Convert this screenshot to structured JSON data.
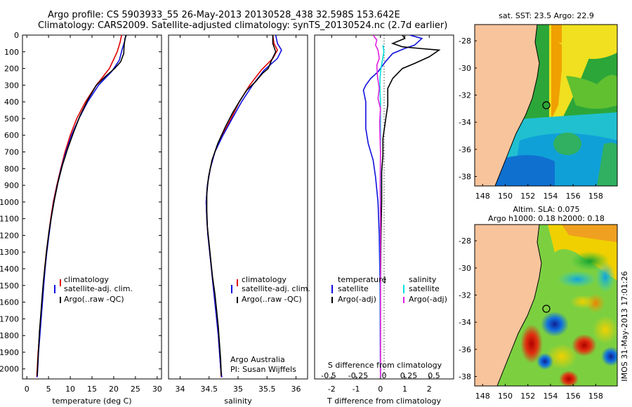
{
  "header": {
    "line1": "Argo profile: CS 5903933_55 26-May-2013 20130528_438 32.598S 153.642E",
    "line2": "Climatology: CARS2009. Satellite-adjusted climatology: synTS_20130524.nc (2.7d earlier)"
  },
  "colors": {
    "climatology": "#e00000",
    "satellite": "#1010e0",
    "argo": "#000000",
    "sal_satellite": "#00e0e0",
    "sal_argo": "#e020e0",
    "land": "#f8c49c"
  },
  "chart_data": [
    {
      "id": "temperature",
      "type": "line",
      "xlabel": "temperature (deg C)",
      "xlim": [
        -1,
        31
      ],
      "ylim": [
        0,
        2060
      ],
      "y_reversed": true,
      "xticks": [
        0,
        5,
        10,
        15,
        20,
        25,
        30
      ],
      "yticks": [
        0,
        100,
        200,
        300,
        400,
        500,
        600,
        700,
        800,
        900,
        1000,
        1100,
        1200,
        1300,
        1400,
        1500,
        1600,
        1700,
        1800,
        1900,
        2000
      ],
      "legend": [
        "climatology",
        "satellite-adj. clim.",
        "Argo(..raw -QC)"
      ],
      "series": [
        {
          "name": "climatology",
          "color": "#e00000",
          "points": [
            [
              21.8,
              0
            ],
            [
              21.5,
              40
            ],
            [
              20.8,
              100
            ],
            [
              19,
              200
            ],
            [
              16,
              300
            ],
            [
              13.5,
              400
            ],
            [
              11.5,
              500
            ],
            [
              10,
              600
            ],
            [
              8.8,
              700
            ],
            [
              7.8,
              800
            ],
            [
              6.9,
              900
            ],
            [
              6.1,
              1000
            ],
            [
              5.5,
              1100
            ],
            [
              5,
              1200
            ],
            [
              4.5,
              1300
            ],
            [
              4.1,
              1400
            ],
            [
              3.8,
              1500
            ],
            [
              3.5,
              1600
            ],
            [
              3.2,
              1700
            ],
            [
              2.9,
              1800
            ],
            [
              2.6,
              1900
            ],
            [
              2.4,
              2000
            ],
            [
              2.3,
              2050
            ]
          ]
        },
        {
          "name": "satellite-adj. clim.",
          "color": "#1010e0",
          "points": [
            [
              22.8,
              0
            ],
            [
              22.5,
              40
            ],
            [
              22,
              80
            ],
            [
              21.3,
              150
            ],
            [
              19.5,
              220
            ],
            [
              16.5,
              300
            ],
            [
              14,
              400
            ],
            [
              12,
              500
            ],
            [
              10.3,
              600
            ],
            [
              9,
              700
            ],
            [
              7.9,
              800
            ],
            [
              7,
              900
            ],
            [
              6.2,
              1000
            ],
            [
              5.6,
              1100
            ],
            [
              5.1,
              1200
            ],
            [
              4.6,
              1300
            ],
            [
              4.2,
              1400
            ],
            [
              3.9,
              1500
            ],
            [
              3.6,
              1600
            ],
            [
              3.3,
              1700
            ],
            [
              3,
              1800
            ],
            [
              2.7,
              1900
            ],
            [
              2.5,
              2000
            ],
            [
              2.4,
              2050
            ]
          ]
        },
        {
          "name": "Argo(..raw -QC)",
          "color": "#000000",
          "points": [
            [
              22.9,
              0
            ],
            [
              22.6,
              20
            ],
            [
              22.4,
              60
            ],
            [
              22.3,
              110
            ],
            [
              21.6,
              160
            ],
            [
              20.2,
              200
            ],
            [
              18,
              250
            ],
            [
              16,
              300
            ],
            [
              14.2,
              380
            ],
            [
              12.3,
              480
            ],
            [
              10.8,
              580
            ],
            [
              9.4,
              680
            ],
            [
              8.2,
              780
            ],
            [
              7.2,
              880
            ],
            [
              6.4,
              980
            ],
            [
              5.7,
              1080
            ],
            [
              5.1,
              1180
            ],
            [
              4.6,
              1280
            ],
            [
              4.2,
              1380
            ],
            [
              3.8,
              1480
            ],
            [
              3.5,
              1580
            ],
            [
              3.2,
              1680
            ],
            [
              2.9,
              1780
            ],
            [
              2.7,
              1880
            ],
            [
              2.5,
              1980
            ],
            [
              2.4,
              2040
            ]
          ]
        }
      ]
    },
    {
      "id": "salinity",
      "type": "line",
      "xlabel": "salinity",
      "xlim": [
        33.8,
        36.2
      ],
      "ylim": [
        0,
        2060
      ],
      "y_reversed": true,
      "xticks": [
        34,
        34.5,
        35,
        35.5,
        36
      ],
      "legend": [
        "climatology",
        "satellite-adj. clim.",
        "Argo(..raw -QC)"
      ],
      "annotation": [
        "Argo Australia",
        "PI: Susan Wijffels"
      ],
      "series": [
        {
          "name": "climatology",
          "color": "#e00000",
          "points": [
            [
              35.6,
              0
            ],
            [
              35.62,
              50
            ],
            [
              35.68,
              90
            ],
            [
              35.6,
              140
            ],
            [
              35.4,
              210
            ],
            [
              35.2,
              300
            ],
            [
              35.02,
              400
            ],
            [
              34.88,
              500
            ],
            [
              34.73,
              600
            ],
            [
              34.6,
              700
            ],
            [
              34.52,
              800
            ],
            [
              34.47,
              900
            ],
            [
              34.45,
              1000
            ],
            [
              34.46,
              1100
            ],
            [
              34.48,
              1200
            ],
            [
              34.51,
              1300
            ],
            [
              34.54,
              1400
            ],
            [
              34.57,
              1500
            ],
            [
              34.6,
              1600
            ],
            [
              34.63,
              1700
            ],
            [
              34.66,
              1800
            ],
            [
              34.68,
              1900
            ],
            [
              34.7,
              2000
            ],
            [
              34.71,
              2050
            ]
          ]
        },
        {
          "name": "satellite-adj. clim.",
          "color": "#1010e0",
          "points": [
            [
              35.65,
              0
            ],
            [
              35.68,
              50
            ],
            [
              35.75,
              90
            ],
            [
              35.68,
              140
            ],
            [
              35.45,
              210
            ],
            [
              35.25,
              300
            ],
            [
              35.06,
              400
            ],
            [
              34.9,
              500
            ],
            [
              34.74,
              600
            ],
            [
              34.6,
              700
            ],
            [
              34.52,
              800
            ],
            [
              34.47,
              900
            ],
            [
              34.45,
              1000
            ],
            [
              34.46,
              1100
            ],
            [
              34.48,
              1200
            ],
            [
              34.51,
              1300
            ],
            [
              34.54,
              1400
            ],
            [
              34.57,
              1500
            ],
            [
              34.6,
              1600
            ],
            [
              34.63,
              1700
            ],
            [
              34.66,
              1800
            ],
            [
              34.68,
              1900
            ],
            [
              34.7,
              2000
            ],
            [
              34.72,
              2050
            ]
          ]
        },
        {
          "name": "Argo(..raw -QC)",
          "color": "#000000",
          "points": [
            [
              35.6,
              0
            ],
            [
              35.6,
              50
            ],
            [
              35.65,
              100
            ],
            [
              35.58,
              150
            ],
            [
              35.52,
              200
            ],
            [
              35.42,
              230
            ],
            [
              35.3,
              280
            ],
            [
              35.15,
              330
            ],
            [
              35.02,
              400
            ],
            [
              34.9,
              470
            ],
            [
              34.78,
              550
            ],
            [
              34.65,
              650
            ],
            [
              34.55,
              750
            ],
            [
              34.49,
              850
            ],
            [
              34.46,
              950
            ],
            [
              34.46,
              1050
            ],
            [
              34.47,
              1150
            ],
            [
              34.5,
              1250
            ],
            [
              34.53,
              1350
            ],
            [
              34.56,
              1450
            ],
            [
              34.6,
              1550
            ],
            [
              34.63,
              1650
            ],
            [
              34.66,
              1750
            ],
            [
              34.68,
              1850
            ],
            [
              34.7,
              1950
            ],
            [
              34.71,
              2040
            ]
          ]
        }
      ]
    },
    {
      "id": "differences",
      "type": "line",
      "xlabel": "T difference from climatology",
      "xlabel_top": "S difference from climatology",
      "xlim": [
        -2.7,
        3
      ],
      "ylim": [
        0,
        2060
      ],
      "y_reversed": true,
      "xticks": [
        -2,
        -1,
        0,
        1,
        2
      ],
      "xticks_sal": [
        "-0.5",
        "-0.25",
        "0",
        "0.25",
        "0.5"
      ],
      "legend_temperature_title": "temperature",
      "legend_salinity_title": "salinity",
      "legend": {
        "temp_sat": "satellite",
        "temp_argo": "Argo(-adj)",
        "sal_sat": "satellite",
        "sal_argo": "Argo(-adj)"
      },
      "series": [
        {
          "name": "satellite",
          "color": "#1010e0",
          "points": [
            [
              1.2,
              0
            ],
            [
              1.7,
              20
            ],
            [
              1.4,
              60
            ],
            [
              1,
              80
            ],
            [
              0.5,
              110
            ],
            [
              0.2,
              160
            ],
            [
              -0.1,
              220
            ],
            [
              -0.4,
              260
            ],
            [
              -0.6,
              300
            ],
            [
              -0.7,
              330
            ],
            [
              -0.6,
              400
            ],
            [
              -0.6,
              500
            ],
            [
              -0.6,
              560
            ],
            [
              -0.5,
              650
            ],
            [
              -0.3,
              750
            ],
            [
              -0.2,
              850
            ],
            [
              -0.1,
              1000
            ],
            [
              -0.05,
              1200
            ],
            [
              -0.02,
              1500
            ],
            [
              0,
              2050
            ]
          ]
        },
        {
          "name": "Argo(-adj)",
          "color": "#000000",
          "points": [
            [
              0.9,
              0
            ],
            [
              1,
              20
            ],
            [
              0.5,
              50
            ],
            [
              0.9,
              70
            ],
            [
              1.6,
              80
            ],
            [
              2.4,
              90
            ],
            [
              2,
              130
            ],
            [
              1.4,
              170
            ],
            [
              0.9,
              200
            ],
            [
              0.5,
              260
            ],
            [
              0.3,
              320
            ],
            [
              0.3,
              420
            ],
            [
              0.2,
              520
            ],
            [
              0.1,
              620
            ],
            [
              0.1,
              720
            ],
            [
              0.05,
              820
            ],
            [
              0.05,
              1000
            ],
            [
              0.02,
              1200
            ],
            [
              0,
              1500
            ],
            [
              0,
              2050
            ]
          ]
        },
        {
          "name": "salinity satellite",
          "color": "#00e0e0",
          "points": [
            [
              0.1,
              60
            ],
            [
              0.14,
              100
            ],
            [
              0.08,
              150
            ],
            [
              0.02,
              200
            ],
            [
              -0.02,
              260
            ],
            [
              -0.02,
              320
            ],
            [
              0,
              400
            ],
            [
              0,
              700
            ],
            [
              0,
              1000
            ],
            [
              -0.01,
              1500
            ],
            [
              0,
              2050
            ]
          ]
        },
        {
          "name": "salinity Argo(-adj)",
          "color": "#e020e0",
          "points": [
            [
              -0.3,
              0
            ],
            [
              -0.15,
              30
            ],
            [
              -0.2,
              60
            ],
            [
              -0.1,
              90
            ],
            [
              -0.05,
              140
            ],
            [
              -0.15,
              180
            ],
            [
              -0.12,
              250
            ],
            [
              -0.05,
              320
            ],
            [
              -0.1,
              380
            ],
            [
              0,
              440
            ],
            [
              -0.03,
              520
            ],
            [
              -0.02,
              600
            ],
            [
              0,
              700
            ],
            [
              -0.01,
              900
            ],
            [
              0,
              1100
            ],
            [
              0,
              1500
            ],
            [
              0,
              2050
            ]
          ]
        }
      ]
    }
  ],
  "maps": {
    "sst": {
      "title": "sat. SST: 23.5  Argo: 22.9",
      "xticks": [
        "148",
        "150",
        "152",
        "154",
        "156",
        "158"
      ],
      "yticks": [
        "-28",
        "-30",
        "-32",
        "-34",
        "-36",
        "-38"
      ]
    },
    "sla": {
      "title_line1": "Altim. SLA: 0.075",
      "title_line2": "Argo h1000: 0.18 h2000: 0.18",
      "xticks": [
        "148",
        "150",
        "152",
        "154",
        "156",
        "158"
      ],
      "yticks": [
        "-28",
        "-30",
        "-32",
        "-34",
        "-36",
        "-38"
      ]
    },
    "float_position": {
      "lon": 153.642,
      "lat": -32.598
    },
    "lon_range": [
      147.3,
      159.9
    ],
    "lat_range": [
      -38.7,
      -26.8
    ]
  },
  "stamp": "IMOS 31-May-2013 17:01:26"
}
